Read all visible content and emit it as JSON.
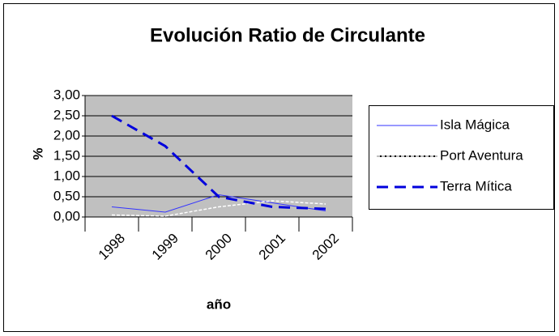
{
  "chart_data": {
    "type": "line",
    "title": "Evolución Ratio de Circulante",
    "x_label": "año",
    "y_label": "%",
    "categories": [
      "1998",
      "1999",
      "2000",
      "2001",
      "2002"
    ],
    "series": [
      {
        "name": "Isla Mágica",
        "color": "#3333ff",
        "values": [
          0.25,
          0.12,
          0.55,
          0.35,
          0.15
        ]
      },
      {
        "name": "Port Aventura",
        "color": "#ffffff",
        "values": [
          0.05,
          0.02,
          0.25,
          0.4,
          0.32
        ]
      },
      {
        "name": "Terra Mítica",
        "color": "#0000dd",
        "values": [
          2.5,
          1.75,
          0.5,
          0.25,
          0.2
        ]
      }
    ],
    "ylim": [
      0,
      3
    ],
    "yticks": [
      {
        "value": 0,
        "label": "0,00"
      },
      {
        "value": 0.5,
        "label": "0,50"
      },
      {
        "value": 1,
        "label": "1,00"
      },
      {
        "value": 1.5,
        "label": "1,50"
      },
      {
        "value": 2,
        "label": "2,00"
      },
      {
        "value": 2.5,
        "label": "2,50"
      },
      {
        "value": 3,
        "label": "3,00"
      }
    ],
    "grid": true,
    "legend": "right"
  }
}
